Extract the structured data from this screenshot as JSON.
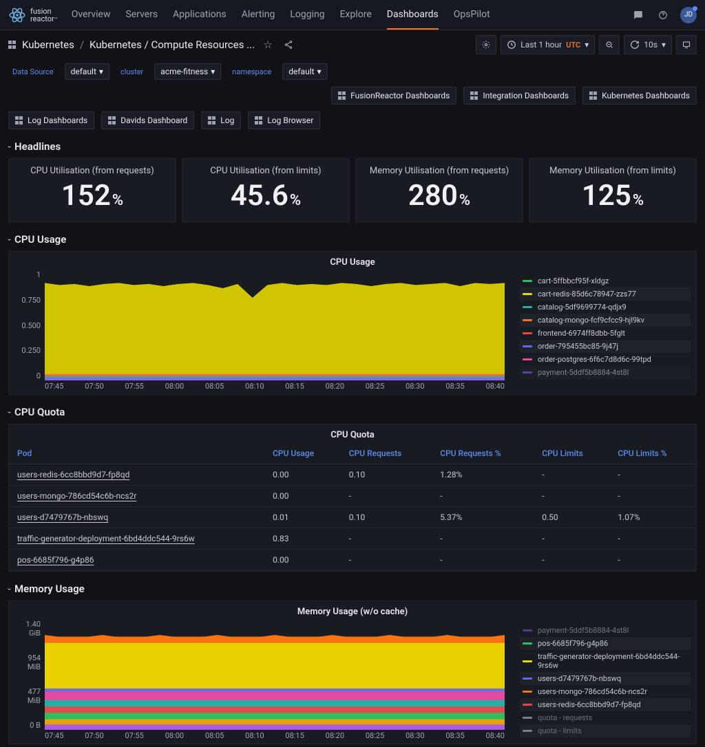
{
  "logo": {
    "top": "fusion",
    "bottom": "reactor",
    "tm": "™"
  },
  "nav": [
    "Overview",
    "Servers",
    "Applications",
    "Alerting",
    "Logging",
    "Explore",
    "Dashboards",
    "OpsPilot"
  ],
  "nav_active": 6,
  "avatar": "JD",
  "breadcrumb": {
    "root": "Kubernetes",
    "path": "Kubernetes / Compute Resources ..."
  },
  "time": {
    "label": "Last 1 hour",
    "utc": "UTC",
    "refresh": "10s"
  },
  "vars": {
    "datasource_label": "Data Source",
    "datasource_value": "default",
    "cluster_label": "cluster",
    "cluster_value": "acme-fitness",
    "namespace_label": "namespace",
    "namespace_value": "default"
  },
  "dashlinks_top": [
    "FusionReactor Dashboards",
    "Integration Dashboards",
    "Kubernetes Dashboards"
  ],
  "dashlinks_bottom": [
    "Log Dashboards",
    "Davids Dashboard",
    "Log",
    "Log Browser"
  ],
  "headlines": {
    "title": "Headlines",
    "stats": [
      {
        "title": "CPU Utilisation (from requests)",
        "value": "152",
        "suffix": "%"
      },
      {
        "title": "CPU Utilisation (from limits)",
        "value": "45.6",
        "suffix": "%"
      },
      {
        "title": "Memory Utilisation (from requests)",
        "value": "280",
        "suffix": "%"
      },
      {
        "title": "Memory Utilisation (from limits)",
        "value": "125",
        "suffix": "%"
      }
    ]
  },
  "cpu_usage": {
    "section_title": "CPU Usage",
    "panel_title": "CPU Usage",
    "ylim": [
      0,
      1
    ],
    "yticks": [
      "1",
      "0.750",
      "0.500",
      "0.250",
      "0"
    ],
    "xticks": [
      "07:45",
      "07:50",
      "07:55",
      "08:00",
      "08:05",
      "08:10",
      "08:15",
      "08:20",
      "08:25",
      "08:30",
      "08:35",
      "08:40"
    ],
    "colors": {
      "background": "#181b22",
      "main_fill": "#e6d800",
      "layer2": "#f97316",
      "layer3": "#ec4899",
      "layer4": "#22c55e",
      "layer5": "#3b82f6",
      "layer6": "#a855f7"
    },
    "main_series_norm": [
      0.92,
      0.9,
      0.91,
      0.89,
      0.91,
      0.92,
      0.9,
      0.91,
      0.89,
      0.91,
      0.92,
      0.9,
      0.87,
      0.91,
      0.78,
      0.9,
      0.92,
      0.9,
      0.91,
      0.9,
      0.92,
      0.91,
      0.89,
      0.91,
      0.92,
      0.9,
      0.91,
      0.92,
      0.89,
      0.92,
      0.91,
      0.92
    ],
    "minor_layer_height": 0.06,
    "legend": [
      {
        "color": "#22c55e",
        "label": "cart-5ffbbcf95f-xldgz"
      },
      {
        "color": "#e6d800",
        "label": "cart-redis-85d6c78947-zzs77"
      },
      {
        "color": "#14b8a6",
        "label": "catalog-5df9699774-qdjx9"
      },
      {
        "color": "#f97316",
        "label": "catalog-mongo-fcf9cfcc9-hjl9kv"
      },
      {
        "color": "#ef4444",
        "label": "frontend-6974ff8dbb-5fglt"
      },
      {
        "color": "#6366f1",
        "label": "order-795455bc85-9j47j"
      },
      {
        "color": "#ec4899",
        "label": "order-postgres-6f6c7d8d6c-99tpd"
      },
      {
        "color": "#8b5cf6",
        "label": "payment-5ddf5b8884-4st8l",
        "cut": true
      }
    ]
  },
  "cpu_quota": {
    "section_title": "CPU Quota",
    "panel_title": "CPU Quota",
    "columns": [
      "Pod",
      "CPU Usage",
      "CPU Requests",
      "CPU Requests %",
      "CPU Limits",
      "CPU Limits %"
    ],
    "rows": [
      [
        "users-redis-6cc8bbd9d7-fp8qd",
        "0.00",
        "0.10",
        "1.28%",
        "-",
        "-"
      ],
      [
        "users-mongo-786cd54c6b-ncs2r",
        "0.00",
        "-",
        "-",
        "-",
        "-"
      ],
      [
        "users-d7479767b-nbswq",
        "0.01",
        "0.10",
        "5.37%",
        "0.50",
        "1.07%"
      ],
      [
        "traffic-generator-deployment-6bd4ddc544-9rs6w",
        "0.83",
        "-",
        "-",
        "-",
        "-"
      ],
      [
        "pos-6685f796-g4p86",
        "0.00",
        "-",
        "-",
        "-",
        "-"
      ]
    ]
  },
  "mem_usage": {
    "section_title": "Memory Usage",
    "panel_title": "Memory Usage (w/o cache)",
    "yticks": [
      "1.40 GiB",
      "954 MiB",
      "477 MiB",
      "0 B"
    ],
    "xticks": [
      "07:45",
      "07:50",
      "07:55",
      "08:00",
      "08:05",
      "08:10",
      "08:15",
      "08:20",
      "08:25",
      "08:30",
      "08:35",
      "08:40"
    ],
    "stack_bands": [
      {
        "color": "#f97316",
        "h": 0.88
      },
      {
        "color": "#e6d800",
        "h": 0.82
      },
      {
        "color": "#6366f1",
        "h": 0.39
      },
      {
        "color": "#ec4899",
        "h": 0.36
      },
      {
        "color": "#14b8a6",
        "h": 0.28
      },
      {
        "color": "#ef4444",
        "h": 0.22
      },
      {
        "color": "#22c55e",
        "h": 0.16
      },
      {
        "color": "#f59e0b",
        "h": 0.1
      },
      {
        "color": "#a855f7",
        "h": 0.05
      }
    ],
    "legend": [
      {
        "color": "#8b5cf6",
        "label": "payment-5ddf5b8884-4st8l",
        "cut": true
      },
      {
        "color": "#22c55e",
        "label": "pos-6685f796-g4p86"
      },
      {
        "color": "#e6d800",
        "label": "traffic-generator-deployment-6bd4ddc544-9rs6w"
      },
      {
        "color": "#6366f1",
        "label": "users-d7479767b-nbswq"
      },
      {
        "color": "#f97316",
        "label": "users-mongo-786cd54c6b-ncs2r"
      },
      {
        "color": "#ef4444",
        "label": "users-redis-6cc8bbd9d7-fp8qd"
      },
      {
        "color": "#7a7d87",
        "label": "quota - requests",
        "dim": true
      },
      {
        "color": "#7a7d87",
        "label": "quota - limits",
        "dim": true
      }
    ]
  }
}
